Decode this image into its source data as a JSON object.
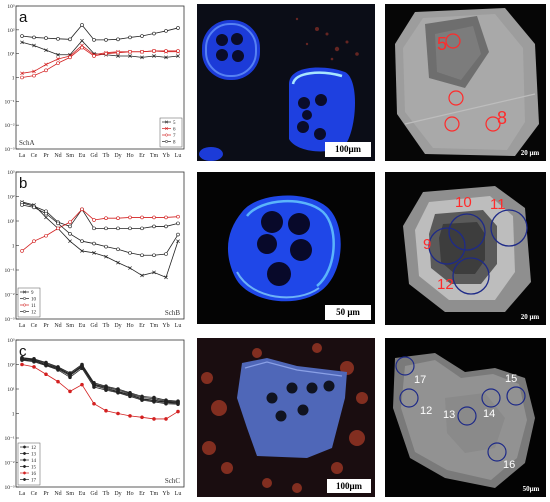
{
  "chart_data": [
    {
      "type": "line",
      "panel_label": "a",
      "sample": "SchA",
      "yscale": "log",
      "ylim": [
        0.001,
        1000
      ],
      "yticks": [
        "10³",
        "10²",
        "10¹",
        "1",
        "10⁻¹",
        "10⁻²",
        "10⁻³"
      ],
      "categories": [
        "La",
        "Ce",
        "Pr",
        "Nd",
        "Sm",
        "Eu",
        "Gd",
        "Tb",
        "Dy",
        "Ho",
        "Er",
        "Tm",
        "Yb",
        "Lu"
      ],
      "series": [
        {
          "name": "5",
          "color": "#222222",
          "marker": "x",
          "values": [
            30,
            22,
            14,
            9,
            9,
            35,
            10,
            9,
            8,
            8,
            7,
            8,
            7,
            8
          ]
        },
        {
          "name": "6",
          "color": "#d32020",
          "marker": "x",
          "values": [
            1.5,
            1.8,
            3.5,
            6,
            8,
            22,
            9,
            11,
            12,
            12,
            12,
            13,
            12,
            12
          ]
        },
        {
          "name": "7",
          "color": "#d32020",
          "marker": "o",
          "values": [
            1.0,
            1.2,
            2,
            4,
            7,
            18,
            8,
            10,
            11,
            12,
            12,
            13,
            13,
            13
          ]
        },
        {
          "name": "8",
          "color": "#222222",
          "marker": "o",
          "values": [
            55,
            48,
            45,
            42,
            40,
            160,
            38,
            38,
            40,
            48,
            55,
            70,
            90,
            120
          ]
        }
      ]
    },
    {
      "type": "line",
      "panel_label": "b",
      "sample": "SchB",
      "yscale": "log",
      "ylim": [
        0.001,
        1000
      ],
      "yticks": [
        "10³",
        "10²",
        "10¹",
        "1",
        "10⁻¹",
        "10⁻²",
        "10⁻³"
      ],
      "categories": [
        "La",
        "Ce",
        "Pr",
        "Nd",
        "Sm",
        "Eu",
        "Gd",
        "Tb",
        "Dy",
        "Ho",
        "Er",
        "Tm",
        "Yb",
        "Lu"
      ],
      "series": [
        {
          "name": "9",
          "color": "#222222",
          "marker": "x",
          "values": [
            60,
            45,
            14,
            5,
            1.5,
            0.6,
            0.5,
            0.35,
            0.2,
            0.12,
            0.06,
            0.08,
            0.05,
            1.5
          ]
        },
        {
          "name": "10",
          "color": "#222222",
          "marker": "o",
          "values": [
            55,
            40,
            25,
            9,
            6,
            30,
            5,
            5,
            5,
            5,
            5,
            6,
            6,
            8
          ]
        },
        {
          "name": "11",
          "color": "#d32020",
          "marker": "o",
          "values": [
            0.6,
            1.5,
            2.5,
            5,
            9,
            30,
            11,
            13,
            13,
            14,
            14,
            14,
            14,
            15
          ]
        },
        {
          "name": "12",
          "color": "#222222",
          "marker": "o",
          "values": [
            45,
            36,
            20,
            8,
            3,
            1.5,
            1.2,
            0.9,
            0.7,
            0.5,
            0.4,
            0.4,
            0.45,
            2.8
          ]
        }
      ]
    },
    {
      "type": "line",
      "panel_label": "c",
      "sample": "SchC",
      "yscale": "log",
      "ylim": [
        0.001,
        1000
      ],
      "yticks": [
        "10³",
        "10²",
        "10¹",
        "1",
        "10⁻¹",
        "10⁻²",
        "10⁻³"
      ],
      "categories": [
        "La",
        "Ce",
        "Pr",
        "Nd",
        "Sm",
        "Eu",
        "Gd",
        "Tb",
        "Dy",
        "Ho",
        "Er",
        "Tm",
        "Yb",
        "Lu"
      ],
      "series": [
        {
          "name": "12",
          "color": "#222222",
          "marker": "o",
          "values": [
            190,
            170,
            120,
            80,
            45,
            100,
            18,
            13,
            10,
            7,
            5,
            4.5,
            3.5,
            3.2
          ]
        },
        {
          "name": "13",
          "color": "#222222",
          "marker": "o",
          "values": [
            180,
            160,
            110,
            75,
            40,
            90,
            16,
            12,
            9,
            6.5,
            4.5,
            4,
            3.2,
            3
          ]
        },
        {
          "name": "14",
          "color": "#222222",
          "marker": "o",
          "values": [
            170,
            150,
            100,
            70,
            38,
            85,
            15,
            11,
            8,
            6,
            4,
            3.5,
            3,
            2.8
          ]
        },
        {
          "name": "15",
          "color": "#222222",
          "marker": "o",
          "values": [
            160,
            140,
            95,
            65,
            35,
            80,
            14,
            10,
            7.5,
            5.5,
            3.8,
            3.3,
            2.8,
            2.6
          ]
        },
        {
          "name": "16",
          "color": "#d32020",
          "marker": "o",
          "values": [
            100,
            80,
            40,
            20,
            8,
            15,
            2.5,
            1.3,
            1,
            0.8,
            0.7,
            0.6,
            0.6,
            1.2
          ]
        },
        {
          "name": "17",
          "color": "#222222",
          "marker": "o",
          "values": [
            150,
            130,
            90,
            60,
            30,
            70,
            12,
            9,
            7,
            5,
            3.5,
            3,
            2.5,
            2.4
          ]
        }
      ]
    }
  ],
  "images": {
    "row_a": {
      "cl_scale": "100μm",
      "bse_scale": "20 μm",
      "spots": [
        "5",
        "8"
      ]
    },
    "row_b": {
      "cl_scale": "50 μm",
      "bse_scale": "20 μm",
      "spots": [
        "10",
        "11",
        "9",
        "12"
      ]
    },
    "row_c": {
      "cl_scale": "100μm",
      "bse_scale": "50μm",
      "spots": [
        "17",
        "15",
        "12",
        "13",
        "14",
        "16"
      ]
    }
  },
  "colors": {
    "red_series": "#d32020",
    "black_series": "#222222",
    "cl_blue": "#2a55ff",
    "bse_gray": "#9a9a9a"
  }
}
